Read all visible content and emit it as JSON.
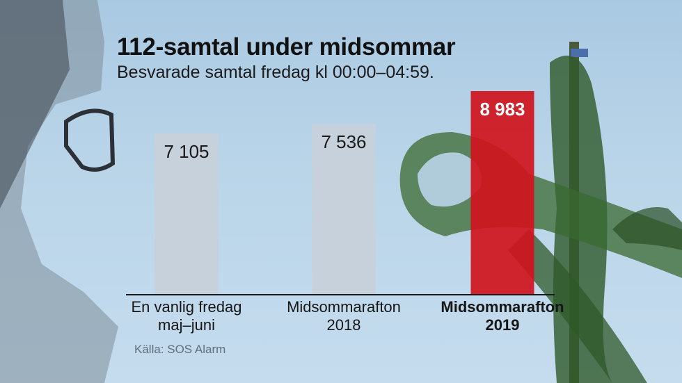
{
  "title": "112-samtal under midsommar",
  "subtitle": "Besvarade samtal fredag kl 00:00–04:59.",
  "source": "Källa: SOS Alarm",
  "chart_data": {
    "type": "bar",
    "categories": [
      [
        "En vanlig fredag",
        "maj–juni"
      ],
      [
        "Midsommarafton",
        "2018"
      ],
      [
        "Midsommarafton",
        "2019"
      ]
    ],
    "values": [
      7105,
      7536,
      8983
    ],
    "value_labels": [
      "7 105",
      "7 536",
      "8 983"
    ],
    "highlight_index": 2,
    "colors": {
      "bar": "#c6d1db",
      "highlight": "#d0141d",
      "axis": "#1a1a1a"
    },
    "grid": false,
    "legend": "none"
  }
}
